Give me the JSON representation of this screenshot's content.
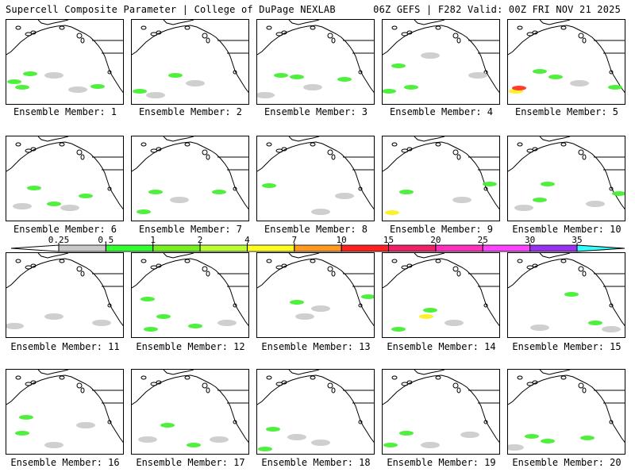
{
  "header": {
    "left_title": "Supercell Composite Parameter | College of DuPage NEXLAB",
    "right_title": "06Z GEFS | F282 Valid: 00Z FRI NOV 21 2025"
  },
  "colorbar": {
    "thresholds": [
      "0.25",
      "0.5",
      "1",
      "2",
      "4",
      "7",
      "10",
      "15",
      "20",
      "25",
      "30",
      "35"
    ],
    "colors": [
      "#c8c8c8",
      "#33ff33",
      "#77ee22",
      "#bbff33",
      "#ffff22",
      "#ff9922",
      "#ff2222",
      "#ee2266",
      "#ff33bb",
      "#ff44ff",
      "#9933ee",
      "#aa66dd",
      "#33ffff"
    ]
  },
  "panels": [
    {
      "label": "Ensemble Member: 1"
    },
    {
      "label": "Ensemble Member: 2"
    },
    {
      "label": "Ensemble Member: 3"
    },
    {
      "label": "Ensemble Member: 4"
    },
    {
      "label": "Ensemble Member: 5"
    },
    {
      "label": "Ensemble Member: 6"
    },
    {
      "label": "Ensemble Member: 7"
    },
    {
      "label": "Ensemble Member: 8"
    },
    {
      "label": "Ensemble Member: 9"
    },
    {
      "label": "Ensemble Member: 10"
    },
    {
      "label": "Ensemble Member: 11"
    },
    {
      "label": "Ensemble Member: 12"
    },
    {
      "label": "Ensemble Member: 13"
    },
    {
      "label": "Ensemble Member: 14"
    },
    {
      "label": "Ensemble Member: 15"
    },
    {
      "label": "Ensemble Member: 16"
    },
    {
      "label": "Ensemble Member: 17"
    },
    {
      "label": "Ensemble Member: 18"
    },
    {
      "label": "Ensemble Member: 19"
    },
    {
      "label": "Ensemble Member: 20"
    }
  ]
}
